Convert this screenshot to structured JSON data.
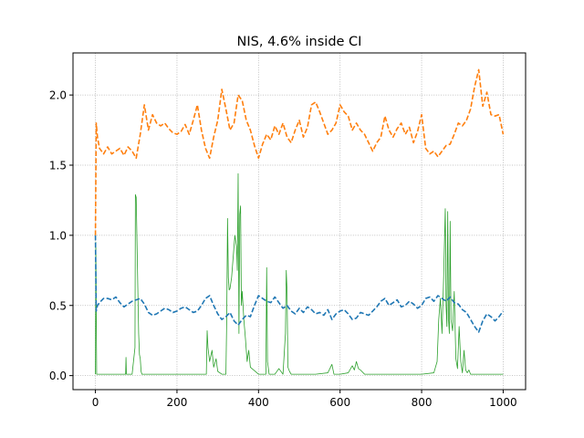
{
  "chart_data": {
    "type": "line",
    "title": "NIS, 4.6% inside CI",
    "xlabel": "",
    "ylabel": "",
    "xlim": [
      -55,
      1055
    ],
    "ylim": [
      -0.1,
      2.3
    ],
    "xticks": [
      0,
      200,
      400,
      600,
      800,
      1000
    ],
    "yticks": [
      0.0,
      0.5,
      1.0,
      1.5,
      2.0
    ],
    "xtick_labels": [
      "0",
      "200",
      "400",
      "600",
      "800",
      "1000"
    ],
    "ytick_labels": [
      "0.0",
      "0.5",
      "1.0",
      "1.5",
      "2.0"
    ],
    "grid": true,
    "series": [
      {
        "color": "#1f77b4",
        "style": "dashed",
        "x": [
          0,
          2,
          5,
          10,
          20,
          30,
          40,
          50,
          60,
          70,
          80,
          90,
          100,
          110,
          120,
          130,
          140,
          150,
          160,
          170,
          180,
          190,
          200,
          210,
          220,
          230,
          240,
          250,
          260,
          270,
          280,
          290,
          300,
          310,
          320,
          330,
          340,
          350,
          360,
          370,
          380,
          390,
          400,
          410,
          420,
          430,
          440,
          450,
          460,
          470,
          480,
          490,
          500,
          510,
          520,
          530,
          540,
          550,
          560,
          570,
          580,
          590,
          600,
          610,
          620,
          630,
          640,
          650,
          660,
          670,
          680,
          690,
          700,
          710,
          720,
          730,
          740,
          750,
          760,
          770,
          780,
          790,
          800,
          810,
          820,
          830,
          840,
          850,
          860,
          870,
          880,
          890,
          900,
          910,
          920,
          930,
          940,
          950,
          960,
          970,
          980,
          990,
          1000
        ],
        "y": [
          1.0,
          0.46,
          0.5,
          0.52,
          0.55,
          0.55,
          0.54,
          0.56,
          0.52,
          0.49,
          0.51,
          0.53,
          0.54,
          0.55,
          0.51,
          0.45,
          0.43,
          0.44,
          0.46,
          0.48,
          0.47,
          0.45,
          0.46,
          0.48,
          0.49,
          0.47,
          0.45,
          0.46,
          0.5,
          0.55,
          0.57,
          0.5,
          0.44,
          0.4,
          0.42,
          0.45,
          0.39,
          0.36,
          0.4,
          0.43,
          0.42,
          0.5,
          0.57,
          0.55,
          0.53,
          0.52,
          0.56,
          0.52,
          0.48,
          0.5,
          0.46,
          0.44,
          0.48,
          0.45,
          0.49,
          0.47,
          0.44,
          0.45,
          0.43,
          0.47,
          0.4,
          0.44,
          0.46,
          0.47,
          0.44,
          0.4,
          0.41,
          0.45,
          0.44,
          0.43,
          0.46,
          0.49,
          0.53,
          0.55,
          0.5,
          0.52,
          0.54,
          0.49,
          0.5,
          0.53,
          0.51,
          0.48,
          0.5,
          0.55,
          0.56,
          0.53,
          0.57,
          0.55,
          0.53,
          0.56,
          0.52,
          0.51,
          0.47,
          0.45,
          0.4,
          0.35,
          0.31,
          0.39,
          0.44,
          0.42,
          0.39,
          0.42,
          0.46
        ]
      },
      {
        "color": "#ff7f0e",
        "style": "dashed",
        "x": [
          0,
          2,
          5,
          10,
          20,
          30,
          40,
          50,
          60,
          70,
          80,
          90,
          100,
          110,
          120,
          130,
          140,
          150,
          160,
          170,
          180,
          190,
          200,
          210,
          220,
          230,
          240,
          250,
          260,
          270,
          280,
          290,
          300,
          310,
          320,
          330,
          340,
          350,
          360,
          370,
          380,
          390,
          400,
          410,
          420,
          430,
          440,
          450,
          460,
          470,
          480,
          490,
          500,
          510,
          520,
          530,
          540,
          550,
          560,
          570,
          580,
          590,
          600,
          610,
          620,
          630,
          640,
          650,
          660,
          670,
          680,
          690,
          700,
          710,
          720,
          730,
          740,
          750,
          760,
          770,
          780,
          790,
          800,
          810,
          820,
          830,
          840,
          850,
          860,
          870,
          880,
          890,
          900,
          910,
          920,
          930,
          940,
          950,
          960,
          970,
          980,
          990,
          1000
        ],
        "y": [
          1.0,
          1.8,
          1.7,
          1.62,
          1.58,
          1.63,
          1.58,
          1.6,
          1.62,
          1.57,
          1.63,
          1.6,
          1.55,
          1.72,
          1.93,
          1.75,
          1.86,
          1.8,
          1.78,
          1.8,
          1.76,
          1.73,
          1.72,
          1.74,
          1.79,
          1.72,
          1.82,
          1.93,
          1.75,
          1.62,
          1.55,
          1.7,
          1.82,
          2.04,
          1.9,
          1.75,
          1.8,
          2.0,
          1.96,
          1.82,
          1.75,
          1.64,
          1.55,
          1.65,
          1.72,
          1.68,
          1.78,
          1.72,
          1.8,
          1.7,
          1.66,
          1.75,
          1.82,
          1.7,
          1.77,
          1.93,
          1.95,
          1.88,
          1.8,
          1.72,
          1.75,
          1.8,
          1.93,
          1.88,
          1.85,
          1.75,
          1.8,
          1.75,
          1.72,
          1.66,
          1.6,
          1.66,
          1.7,
          1.85,
          1.75,
          1.7,
          1.76,
          1.8,
          1.72,
          1.77,
          1.66,
          1.74,
          1.86,
          1.62,
          1.58,
          1.6,
          1.56,
          1.6,
          1.64,
          1.65,
          1.72,
          1.8,
          1.78,
          1.82,
          1.9,
          2.06,
          2.18,
          1.92,
          2.02,
          1.86,
          1.85,
          1.86,
          1.72
        ]
      },
      {
        "color": "#2ca02c",
        "style": "solid",
        "x": [
          0,
          1,
          3,
          10,
          50,
          74,
          75,
          76,
          90,
          97,
          98,
          100,
          104,
          106,
          108,
          110,
          112,
          114,
          120,
          150,
          200,
          250,
          272,
          274,
          276,
          280,
          286,
          290,
          296,
          300,
          310,
          320,
          322,
          324,
          326,
          328,
          330,
          334,
          338,
          342,
          346,
          348,
          350,
          352,
          354,
          356,
          358,
          360,
          364,
          368,
          372,
          376,
          380,
          388,
          396,
          400,
          410,
          418,
          420,
          422,
          426,
          440,
          450,
          460,
          466,
          468,
          470,
          472,
          476,
          480,
          500,
          540,
          570,
          580,
          585,
          590,
          600,
          620,
          630,
          635,
          640,
          645,
          650,
          660,
          700,
          760,
          800,
          830,
          838,
          842,
          846,
          850,
          854,
          858,
          860,
          862,
          864,
          866,
          868,
          870,
          872,
          876,
          880,
          884,
          888,
          892,
          896,
          900,
          904,
          908,
          912,
          916,
          920,
          950,
          1000
        ],
        "y": [
          0.01,
          0.95,
          0.01,
          0.01,
          0.01,
          0.01,
          0.13,
          0.01,
          0.01,
          0.2,
          1.29,
          1.27,
          0.62,
          0.3,
          0.15,
          0.12,
          0.03,
          0.01,
          0.01,
          0.01,
          0.01,
          0.01,
          0.01,
          0.32,
          0.2,
          0.1,
          0.18,
          0.06,
          0.12,
          0.03,
          0.01,
          0.01,
          0.4,
          1.12,
          0.7,
          0.61,
          0.62,
          0.7,
          0.85,
          1.0,
          0.92,
          0.75,
          1.44,
          0.3,
          1.15,
          1.21,
          0.5,
          0.6,
          0.4,
          0.26,
          0.1,
          0.18,
          0.06,
          0.04,
          0.02,
          0.01,
          0.01,
          0.01,
          0.77,
          0.1,
          0.01,
          0.01,
          0.05,
          0.01,
          0.3,
          0.75,
          0.6,
          0.06,
          0.03,
          0.01,
          0.01,
          0.01,
          0.02,
          0.08,
          0.01,
          0.01,
          0.01,
          0.02,
          0.07,
          0.04,
          0.1,
          0.05,
          0.04,
          0.01,
          0.01,
          0.01,
          0.01,
          0.02,
          0.1,
          0.4,
          0.55,
          0.3,
          0.7,
          1.19,
          0.5,
          0.35,
          1.17,
          0.4,
          0.3,
          1.1,
          0.4,
          0.32,
          0.6,
          0.12,
          0.05,
          0.35,
          0.1,
          0.02,
          0.18,
          0.04,
          0.02,
          0.04,
          0.01,
          0.01,
          0.01
        ]
      }
    ]
  }
}
